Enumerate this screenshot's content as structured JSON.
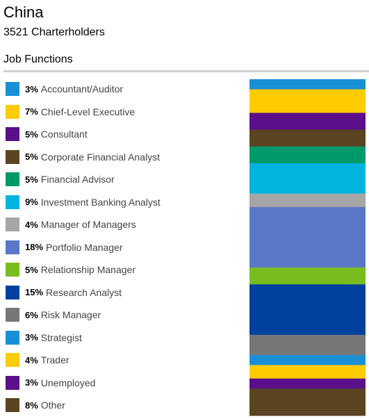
{
  "header": {
    "title": "China",
    "subtitle": "3521 Charterholders",
    "section": "Job Functions"
  },
  "chart_data": {
    "type": "bar",
    "orientation": "stacked-vertical",
    "unit": "%",
    "categories": [
      "Accountant/Auditor",
      "Chief-Level Executive",
      "Consultant",
      "Corporate Financial Analyst",
      "Financial Advisor",
      "Investment Banking Analyst",
      "Manager of Managers",
      "Portfolio Manager",
      "Relationship Manager",
      "Research Analyst",
      "Risk Manager",
      "Strategist",
      "Trader",
      "Unemployed",
      "Other"
    ],
    "values": [
      3,
      7,
      5,
      5,
      5,
      9,
      4,
      18,
      5,
      15,
      6,
      3,
      4,
      3,
      8
    ],
    "labels": [
      "3%",
      "7%",
      "5%",
      "5%",
      "5%",
      "9%",
      "4%",
      "18%",
      "5%",
      "15%",
      "6%",
      "3%",
      "4%",
      "3%",
      "8%"
    ],
    "colors": [
      "#1a8fd6",
      "#ffcc00",
      "#5c0f8b",
      "#5a4422",
      "#009a6a",
      "#00b4e0",
      "#a6a6a6",
      "#5b78c8",
      "#77bd1f",
      "#0041a0",
      "#777777",
      "#1a8fd6",
      "#ffcc00",
      "#5c0f8b",
      "#5a4422"
    ],
    "legend": "left"
  }
}
